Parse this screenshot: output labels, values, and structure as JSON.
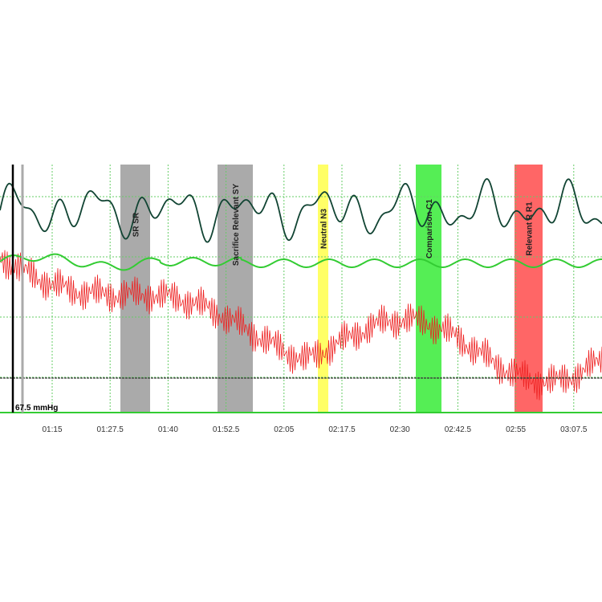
{
  "time_labels": [
    "01:15",
    "01:27.5",
    "01:40",
    "01:52.5",
    "02:05",
    "02:17.5",
    "02:30",
    "02:42.5",
    "02:55",
    "03:07.5"
  ],
  "questions": [
    "SR SR",
    "Sacrifice Relevant SY",
    "Neutral N3",
    "Comparison C1",
    "Relevant R R1"
  ],
  "cursor_label": "67.5 mmHg"
}
